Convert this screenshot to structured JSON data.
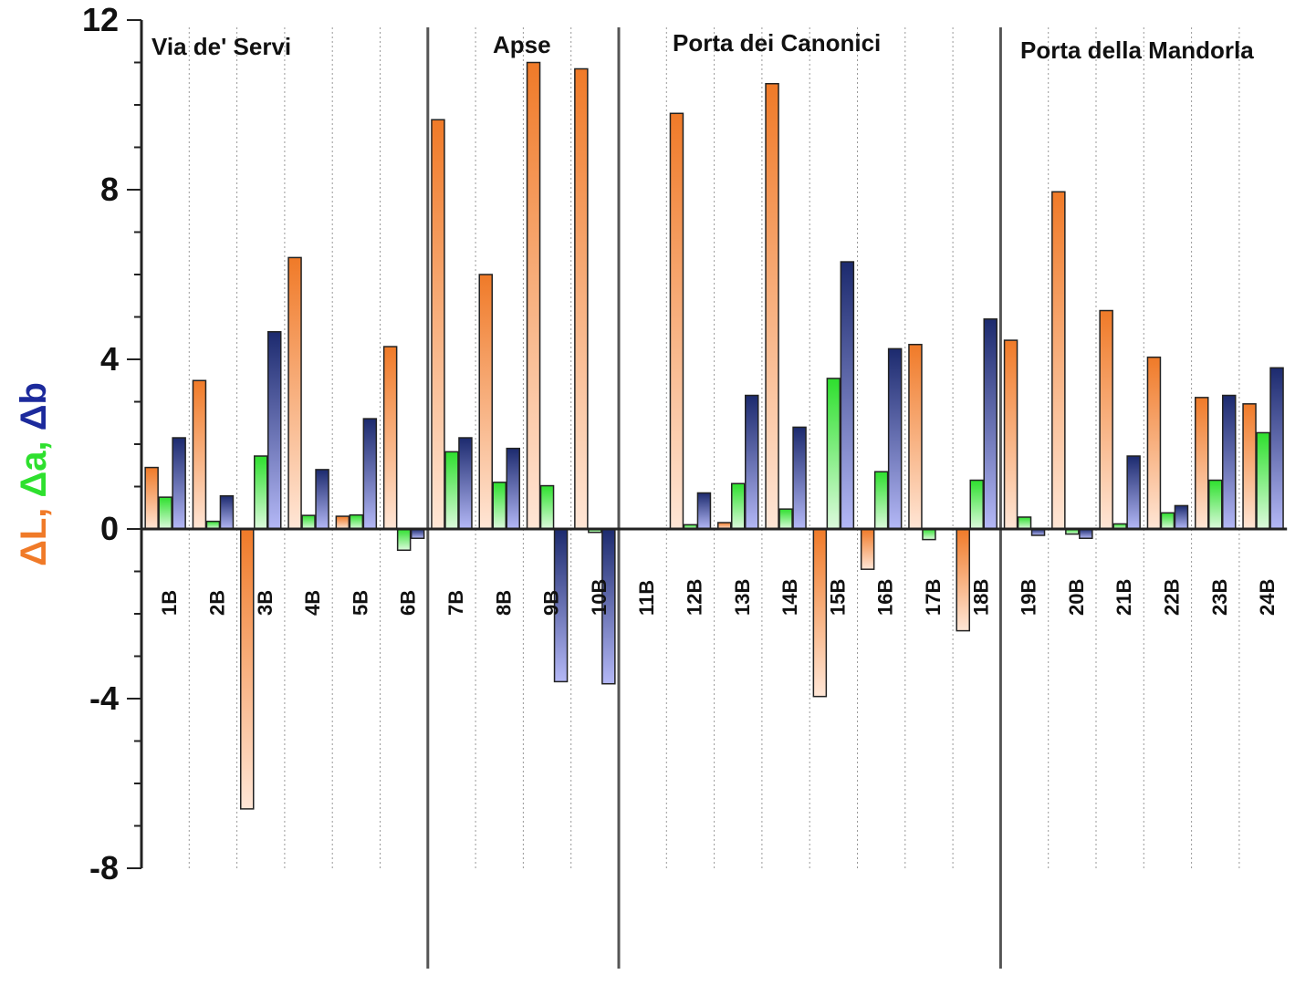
{
  "chart_data": {
    "type": "bar",
    "ylabel_parts": [
      {
        "text": "ΔL",
        "color": "#f07a28"
      },
      {
        "text": ", ",
        "color": "#f07a28"
      },
      {
        "text": "Δa",
        "color": "#2ee02e"
      },
      {
        "text": ", ",
        "color": "#2ee02e"
      },
      {
        "text": "Δb",
        "color": "#1c2a9c"
      }
    ],
    "ylim": [
      -8,
      12
    ],
    "yticks": [
      12,
      8,
      4,
      0,
      -4,
      -8
    ],
    "categories": [
      "1B",
      "2B",
      "3B",
      "4B",
      "5B",
      "6B",
      "7B",
      "8B",
      "9B",
      "10B",
      "11B",
      "12B",
      "13B",
      "14B",
      "15B",
      "16B",
      "17B",
      "18B",
      "19B",
      "20B",
      "21B",
      "22B",
      "23B",
      "24B"
    ],
    "groups": [
      {
        "name": "Via de' Servi",
        "from": 0,
        "to": 5
      },
      {
        "name": "Apse",
        "from": 6,
        "to": 9
      },
      {
        "name": "Porta dei Canonici",
        "from": 10,
        "to": 17
      },
      {
        "name": "Porta della Mandorla",
        "from": 18,
        "to": 23
      }
    ],
    "series": [
      {
        "key": "L",
        "color_top": "#f07a28",
        "color_bottom": "#ffe6d6",
        "values": [
          1.45,
          3.5,
          -6.6,
          6.4,
          0.3,
          4.3,
          9.65,
          6.0,
          11.0,
          10.85,
          0.0,
          9.8,
          0.15,
          10.5,
          -3.95,
          -0.95,
          4.35,
          -2.4,
          4.45,
          7.95,
          5.15,
          4.05,
          3.1,
          2.95
        ]
      },
      {
        "key": "a",
        "color_top": "#2ee02e",
        "color_bottom": "#ddfadd",
        "values": [
          0.75,
          0.18,
          1.72,
          0.32,
          0.33,
          -0.5,
          1.82,
          1.1,
          1.02,
          -0.08,
          0.0,
          0.1,
          1.07,
          0.47,
          3.55,
          1.35,
          -0.25,
          1.15,
          0.28,
          -0.12,
          0.12,
          0.38,
          1.15,
          2.27
        ]
      },
      {
        "key": "b",
        "color_top": "#1c2a6e",
        "color_bottom": "#b4b8f6",
        "values": [
          2.15,
          0.78,
          4.65,
          1.4,
          2.6,
          -0.22,
          2.15,
          1.9,
          -3.6,
          -3.65,
          0.0,
          0.85,
          3.15,
          2.4,
          6.3,
          4.25,
          0.0,
          4.95,
          -0.15,
          -0.22,
          1.72,
          0.55,
          3.15,
          3.8
        ]
      }
    ],
    "grid": "dotted vertical separators between categories; solid vertical separators between groups",
    "legend": "none"
  }
}
